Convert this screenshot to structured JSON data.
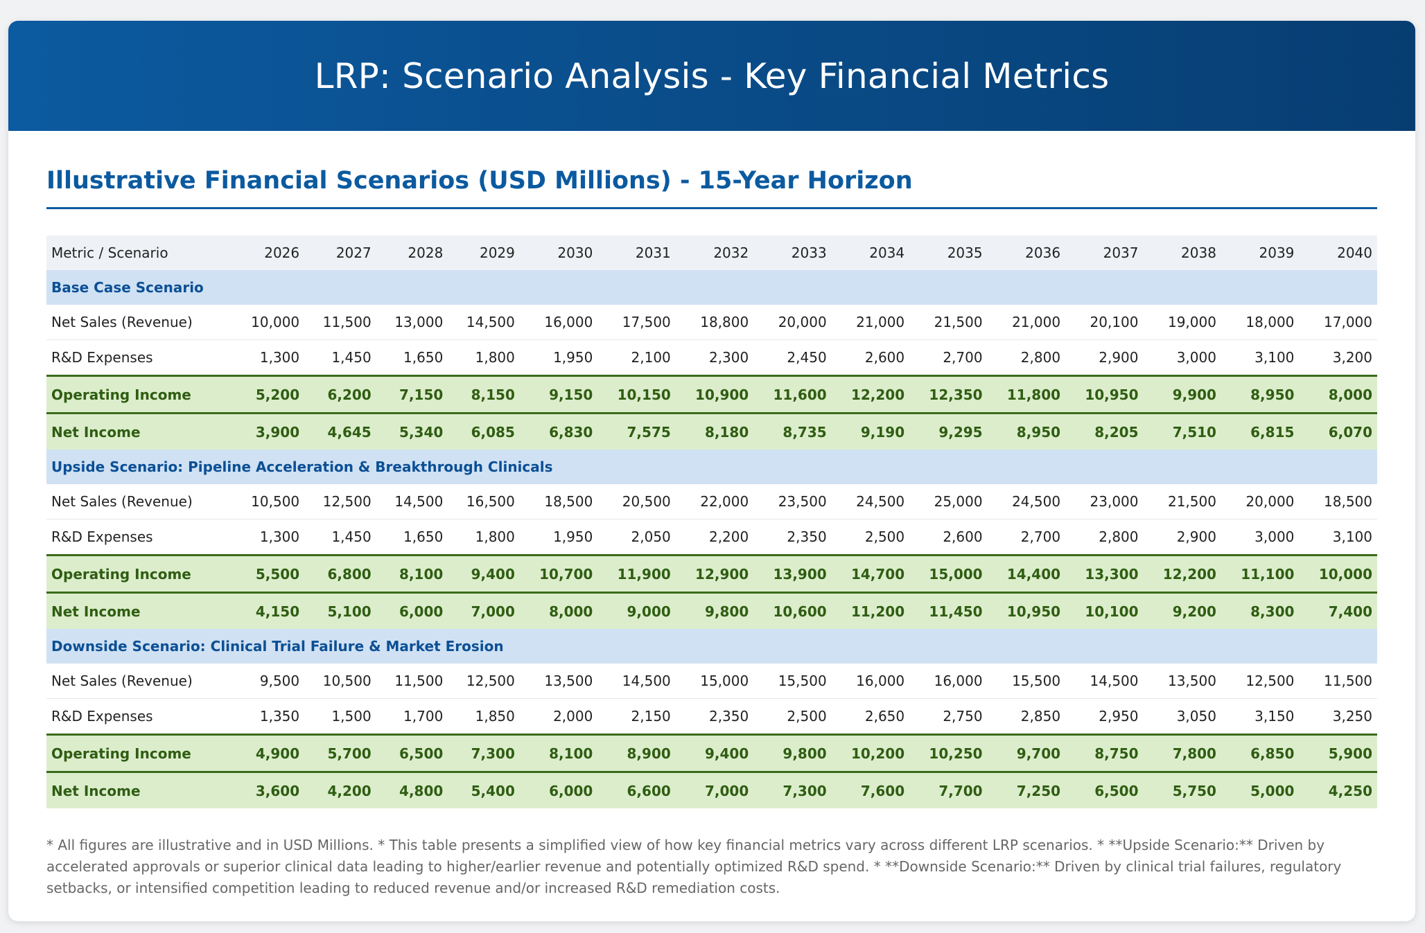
{
  "header": {
    "title": "LRP: Scenario Analysis - Key Financial Metrics"
  },
  "section": {
    "title": "Illustrative Financial Scenarios (USD Millions) - 15-Year Horizon"
  },
  "table": {
    "first_header": "Metric / Scenario",
    "years": [
      "2026",
      "2027",
      "2028",
      "2029",
      "2030",
      "2031",
      "2032",
      "2033",
      "2034",
      "2035",
      "2036",
      "2037",
      "2038",
      "2039",
      "2040"
    ],
    "scenarios": [
      {
        "name": "Base Case Scenario",
        "rows": [
          {
            "label": "Net Sales (Revenue)",
            "type": "normal",
            "values": [
              "10,000",
              "11,500",
              "13,000",
              "14,500",
              "16,000",
              "17,500",
              "18,800",
              "20,000",
              "21,000",
              "21,500",
              "21,000",
              "20,100",
              "19,000",
              "18,000",
              "17,000"
            ]
          },
          {
            "label": "R&D Expenses",
            "type": "normal",
            "values": [
              "1,300",
              "1,450",
              "1,650",
              "1,800",
              "1,950",
              "2,100",
              "2,300",
              "2,450",
              "2,600",
              "2,700",
              "2,800",
              "2,900",
              "3,000",
              "3,100",
              "3,200"
            ]
          },
          {
            "label": "Operating Income",
            "type": "highlight",
            "values": [
              "5,200",
              "6,200",
              "7,150",
              "8,150",
              "9,150",
              "10,150",
              "10,900",
              "11,600",
              "12,200",
              "12,350",
              "11,800",
              "10,950",
              "9,900",
              "8,950",
              "8,000"
            ]
          },
          {
            "label": "Net Income",
            "type": "highlight",
            "values": [
              "3,900",
              "4,645",
              "5,340",
              "6,085",
              "6,830",
              "7,575",
              "8,180",
              "8,735",
              "9,190",
              "9,295",
              "8,950",
              "8,205",
              "7,510",
              "6,815",
              "6,070"
            ]
          }
        ]
      },
      {
        "name": "Upside Scenario: Pipeline Acceleration & Breakthrough Clinicals",
        "rows": [
          {
            "label": "Net Sales (Revenue)",
            "type": "normal",
            "values": [
              "10,500",
              "12,500",
              "14,500",
              "16,500",
              "18,500",
              "20,500",
              "22,000",
              "23,500",
              "24,500",
              "25,000",
              "24,500",
              "23,000",
              "21,500",
              "20,000",
              "18,500"
            ]
          },
          {
            "label": "R&D Expenses",
            "type": "normal",
            "values": [
              "1,300",
              "1,450",
              "1,650",
              "1,800",
              "1,950",
              "2,050",
              "2,200",
              "2,350",
              "2,500",
              "2,600",
              "2,700",
              "2,800",
              "2,900",
              "3,000",
              "3,100"
            ]
          },
          {
            "label": "Operating Income",
            "type": "highlight",
            "values": [
              "5,500",
              "6,800",
              "8,100",
              "9,400",
              "10,700",
              "11,900",
              "12,900",
              "13,900",
              "14,700",
              "15,000",
              "14,400",
              "13,300",
              "12,200",
              "11,100",
              "10,000"
            ]
          },
          {
            "label": "Net Income",
            "type": "highlight",
            "values": [
              "4,150",
              "5,100",
              "6,000",
              "7,000",
              "8,000",
              "9,000",
              "9,800",
              "10,600",
              "11,200",
              "11,450",
              "10,950",
              "10,100",
              "9,200",
              "8,300",
              "7,400"
            ]
          }
        ]
      },
      {
        "name": "Downside Scenario: Clinical Trial Failure & Market Erosion",
        "rows": [
          {
            "label": "Net Sales (Revenue)",
            "type": "normal",
            "values": [
              "9,500",
              "10,500",
              "11,500",
              "12,500",
              "13,500",
              "14,500",
              "15,000",
              "15,500",
              "16,000",
              "16,000",
              "15,500",
              "14,500",
              "13,500",
              "12,500",
              "11,500"
            ]
          },
          {
            "label": "R&D Expenses",
            "type": "normal",
            "values": [
              "1,350",
              "1,500",
              "1,700",
              "1,850",
              "2,000",
              "2,150",
              "2,350",
              "2,500",
              "2,650",
              "2,750",
              "2,850",
              "2,950",
              "3,050",
              "3,150",
              "3,250"
            ]
          },
          {
            "label": "Operating Income",
            "type": "highlight",
            "values": [
              "4,900",
              "5,700",
              "6,500",
              "7,300",
              "8,100",
              "8,900",
              "9,400",
              "9,800",
              "10,200",
              "10,250",
              "9,700",
              "8,750",
              "7,800",
              "6,850",
              "5,900"
            ]
          },
          {
            "label": "Net Income",
            "type": "highlight",
            "values": [
              "3,600",
              "4,200",
              "4,800",
              "5,400",
              "6,000",
              "6,600",
              "7,000",
              "7,300",
              "7,600",
              "7,700",
              "7,250",
              "6,500",
              "5,750",
              "5,000",
              "4,250"
            ]
          }
        ]
      }
    ]
  },
  "footnote": "* All figures are illustrative and in USD Millions. * This table presents a simplified view of how key financial metrics vary across different LRP scenarios. * **Upside Scenario:** Driven by accelerated approvals or superior clinical data leading to higher/earlier revenue and potentially optimized R&D spend. * **Downside Scenario:** Driven by clinical trial failures, regulatory setbacks, or intensified competition leading to reduced revenue and/or increased R&D remediation costs."
}
